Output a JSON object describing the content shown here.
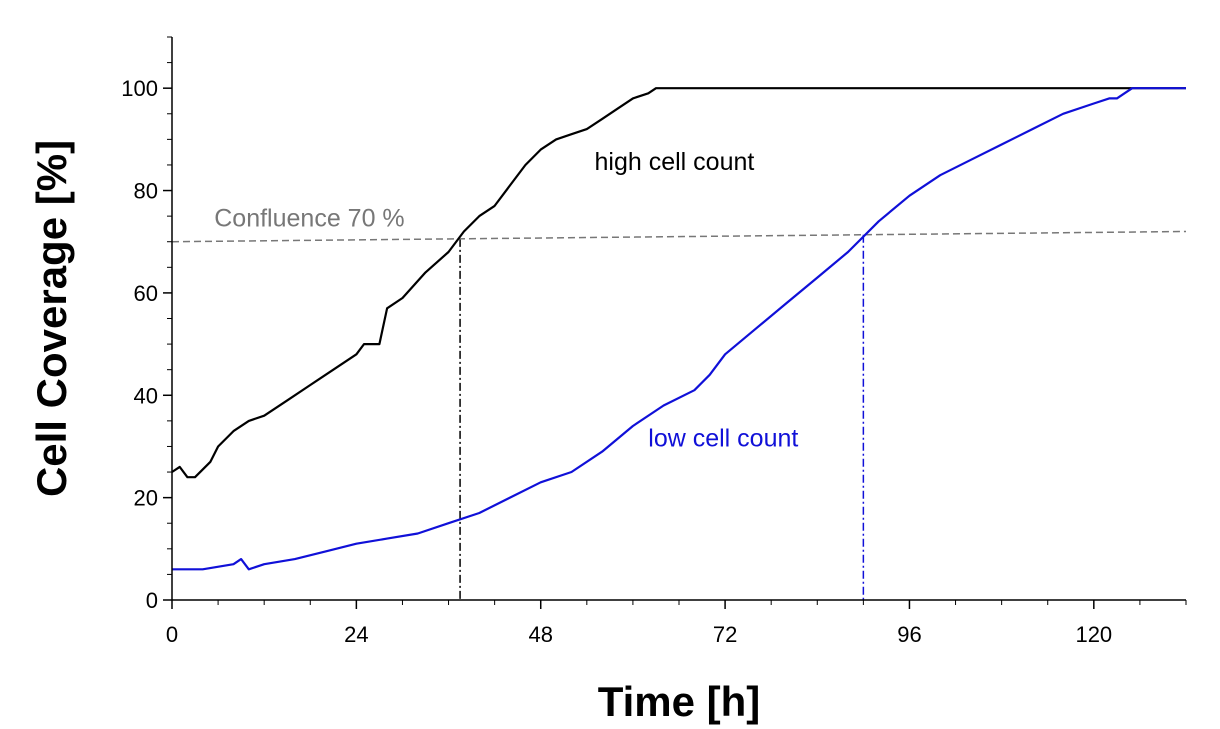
{
  "chart_data": {
    "type": "line",
    "title": "",
    "xlabel": "Time [h]",
    "ylabel": "Cell Coverage [%]",
    "xlim": [
      0,
      132
    ],
    "ylim": [
      0,
      110
    ],
    "x_ticks": [
      0,
      24,
      48,
      72,
      96,
      120
    ],
    "y_ticks": [
      0,
      20,
      40,
      60,
      80,
      100
    ],
    "x_tick_labels": [
      "0",
      "24",
      "48",
      "72",
      "96",
      "120"
    ],
    "y_tick_labels": [
      "0",
      "20",
      "40",
      "60",
      "80",
      "100"
    ],
    "grid": false,
    "legend": "none",
    "series": [
      {
        "name": "high cell count",
        "color": "#000000",
        "x": [
          0,
          1,
          2,
          3,
          5,
          6,
          8,
          10,
          12,
          15,
          18,
          21,
          24,
          25,
          26,
          27,
          28,
          30,
          33,
          36,
          38,
          40,
          42,
          44,
          46,
          48,
          50,
          52,
          54,
          56,
          58,
          60,
          62,
          63,
          64,
          80,
          100,
          120,
          132
        ],
        "y": [
          25,
          26,
          24,
          24,
          27,
          30,
          33,
          35,
          36,
          39,
          42,
          45,
          48,
          50,
          50,
          50,
          57,
          59,
          64,
          68,
          72,
          75,
          77,
          81,
          85,
          88,
          90,
          91,
          92,
          94,
          96,
          98,
          99,
          100,
          100,
          100,
          100,
          100,
          100
        ]
      },
      {
        "name": "low cell count",
        "color": "#1010d8",
        "x": [
          0,
          4,
          8,
          9,
          10,
          12,
          16,
          20,
          24,
          28,
          32,
          36,
          40,
          44,
          48,
          52,
          56,
          60,
          64,
          68,
          70,
          72,
          76,
          80,
          84,
          88,
          90,
          92,
          96,
          100,
          104,
          108,
          112,
          116,
          120,
          122,
          123,
          124,
          125,
          126,
          130,
          132
        ],
        "y": [
          6,
          6,
          7,
          8,
          6,
          7,
          8,
          9.5,
          11,
          12,
          13,
          15,
          17,
          20,
          23,
          25,
          29,
          34,
          38,
          41,
          44,
          48,
          53,
          58,
          63,
          68,
          71,
          74,
          79,
          83,
          86,
          89,
          92,
          95,
          97,
          98,
          98,
          99,
          100,
          100,
          100,
          100
        ]
      }
    ],
    "reference_lines": [
      {
        "label": "Confluence 70 %",
        "y_start": 70,
        "y_end": 72,
        "color": "#777777",
        "style": "dashed"
      }
    ],
    "drop_lines": [
      {
        "x": 37.5,
        "color": "#000000"
      },
      {
        "x": 90,
        "color": "#1010d8"
      }
    ],
    "annotations": [
      {
        "text": "high cell count",
        "x": 55,
        "y": 84,
        "color": "#000000"
      },
      {
        "text": "low cell count",
        "x": 62,
        "y": 30,
        "color": "#1010d8"
      },
      {
        "text": "Confluence 70 %",
        "x": 5.5,
        "y": 73,
        "color": "#777777"
      }
    ]
  }
}
